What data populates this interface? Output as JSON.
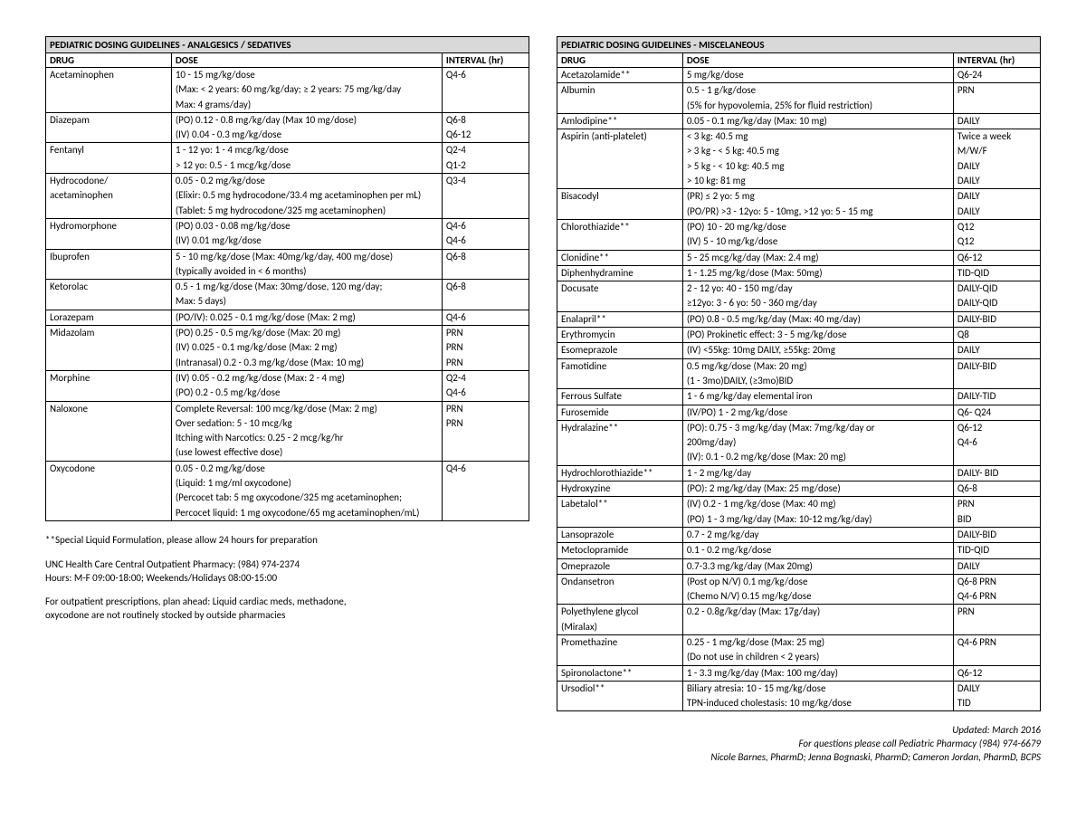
{
  "tables": {
    "left": {
      "title": "PEDIATRIC DOSING GUIDELINES - ANALGESICS / SEDATIVES",
      "headers": {
        "drug": "DRUG",
        "dose": "DOSE",
        "interval": "INTERVAL (hr)"
      },
      "rows": [
        {
          "sep": true,
          "drug": "Acetaminophen",
          "dose": "10 - 15 mg/kg/dose",
          "interval": "Q4-6"
        },
        {
          "drug": "",
          "dose": "(Max: < 2 years: 60 mg/kg/day; ≥ 2 years: 75 mg/kg/day",
          "interval": ""
        },
        {
          "drug": "",
          "dose": "Max: 4 grams/day)",
          "interval": ""
        },
        {
          "sep": true,
          "drug": "Diazepam",
          "dose": "(PO) 0.12 - 0.8 mg/kg/day (Max 10 mg/dose)",
          "interval": "Q6-8"
        },
        {
          "drug": "",
          "dose": "(IV) 0.04 - 0.3 mg/kg/dose",
          "interval": "Q6-12"
        },
        {
          "sep": true,
          "drug": "Fentanyl",
          "dose": "1 - 12 yo: 1 - 4 mcg/kg/dose",
          "interval": "Q2-4"
        },
        {
          "drug": "",
          "dose": "> 12 yo: 0.5 - 1 mcg/kg/dose",
          "interval": "Q1-2"
        },
        {
          "sep": true,
          "drug": "Hydrocodone/",
          "dose": "0.05 - 0.2 mg/kg/dose",
          "interval": "Q3-4"
        },
        {
          "drug": "acetaminophen",
          "dose": "(Elixir: 0.5 mg hydrocodone/33.4 mg acetaminophen per mL)",
          "interval": ""
        },
        {
          "drug": "",
          "dose": "(Tablet: 5 mg hydrocodone/325 mg acetaminophen)",
          "interval": ""
        },
        {
          "sep": true,
          "drug": "Hydromorphone",
          "dose": "(PO) 0.03 - 0.08 mg/kg/dose",
          "interval": "Q4-6"
        },
        {
          "drug": "",
          "dose": "(IV) 0.01 mg/kg/dose",
          "interval": "Q4-6"
        },
        {
          "sep": true,
          "drug": "Ibuprofen",
          "dose": "5 - 10 mg/kg/dose (Max: 40mg/kg/day, 400 mg/dose)",
          "interval": "Q6-8"
        },
        {
          "drug": "",
          "dose": "(typically avoided in < 6 months)",
          "interval": ""
        },
        {
          "sep": true,
          "drug": "Ketorolac",
          "dose": "0.5 - 1 mg/kg/dose (Max: 30mg/dose, 120 mg/day;",
          "interval": "Q6-8"
        },
        {
          "drug": "",
          "dose": "Max: 5 days)",
          "interval": ""
        },
        {
          "sep": true,
          "drug": "Lorazepam",
          "dose": "(PO/IV): 0.025 - 0.1 mg/kg/dose (Max: 2 mg)",
          "interval": "Q4-6"
        },
        {
          "sep": true,
          "drug": "Midazolam",
          "dose": "(PO) 0.25 - 0.5 mg/kg/dose (Max: 20 mg)",
          "interval": "PRN"
        },
        {
          "drug": "",
          "dose": "(IV) 0.025 - 0.1 mg/kg/dose (Max: 2 mg)",
          "interval": "PRN"
        },
        {
          "drug": "",
          "dose": "(Intranasal) 0.2 - 0.3 mg/kg/dose (Max: 10 mg)",
          "interval": "PRN"
        },
        {
          "sep": true,
          "drug": "Morphine",
          "dose": "(IV) 0.05 - 0.2 mg/kg/dose (Max: 2 - 4 mg)",
          "interval": "Q2-4"
        },
        {
          "drug": "",
          "dose": "(PO) 0.2 - 0.5 mg/kg/dose",
          "interval": "Q4-6"
        },
        {
          "sep": true,
          "drug": "Naloxone",
          "dose": "Complete Reversal: 100 mcg/kg/dose (Max: 2 mg)",
          "interval": "PRN"
        },
        {
          "drug": "",
          "dose": "Over sedation: 5 - 10 mcg/kg",
          "interval": "PRN"
        },
        {
          "drug": "",
          "dose": "Itching with Narcotics: 0.25 - 2 mcg/kg/hr",
          "interval": ""
        },
        {
          "drug": "",
          "dose": "(use lowest effective dose)",
          "interval": ""
        },
        {
          "sep": true,
          "drug": "Oxycodone",
          "dose": "0.05 - 0.2 mg/kg/dose",
          "interval": "Q4-6"
        },
        {
          "drug": "",
          "dose": "(Liquid: 1 mg/ml oxycodone)",
          "interval": ""
        },
        {
          "drug": "",
          "dose": "(Percocet tab: 5 mg oxycodone/325 mg acetaminophen;",
          "interval": ""
        },
        {
          "last": true,
          "drug": "",
          "dose": "Percocet liquid: 1 mg oxycodone/65 mg acetaminophen/mL)",
          "interval": ""
        }
      ]
    },
    "right": {
      "title": "PEDIATRIC DOSING GUIDELINES - MISCELANEOUS",
      "headers": {
        "drug": "DRUG",
        "dose": "DOSE",
        "interval": "INTERVAL (hr)"
      },
      "rows": [
        {
          "sep": true,
          "drug": "Acetazolamide**",
          "dose": "5 mg/kg/dose",
          "interval": "Q6-24"
        },
        {
          "sep": true,
          "drug": "Albumin",
          "dose": "0.5 - 1 g/kg/dose",
          "interval": "PRN"
        },
        {
          "drug": "",
          "dose": "(5% for hypovolemia, 25% for fluid restriction)",
          "interval": ""
        },
        {
          "sep": true,
          "drug": "Amlodipine**",
          "dose": "0.05 - 0.1 mg/kg/day (Max: 10 mg)",
          "interval": "DAILY"
        },
        {
          "sep": true,
          "drug": "Aspirin (anti-platelet)",
          "dose": "< 3 kg: 40.5 mg",
          "interval": "Twice a week"
        },
        {
          "drug": "",
          "dose": "> 3 kg - < 5 kg: 40.5 mg",
          "interval": "M/W/F"
        },
        {
          "drug": "",
          "dose": "> 5 kg - < 10 kg: 40.5 mg",
          "interval": "DAILY"
        },
        {
          "drug": "",
          "dose": "> 10 kg: 81 mg",
          "interval": "DAILY"
        },
        {
          "sep": true,
          "drug": "Bisacodyl",
          "dose": "(PR) ≤ 2 yo: 5 mg",
          "interval": "DAILY"
        },
        {
          "drug": "",
          "dose": "(PO/PR) >3 - 12yo: 5 - 10mg, >12 yo: 5 - 15 mg",
          "interval": "DAILY"
        },
        {
          "sep": true,
          "drug": "Chlorothiazide**",
          "dose": "(PO) 10 - 20 mg/kg/dose",
          "interval": "Q12"
        },
        {
          "drug": "",
          "dose": "(IV) 5 - 10 mg/kg/dose",
          "interval": "Q12"
        },
        {
          "sep": true,
          "drug": "Clonidine**",
          "dose": "5 - 25 mcg/kg/day (Max: 2.4 mg)",
          "interval": "Q6-12"
        },
        {
          "sep": true,
          "drug": "Diphenhydramine",
          "dose": "1 - 1.25 mg/kg/dose (Max: 50mg)",
          "interval": "TID-QID"
        },
        {
          "sep": true,
          "drug": "Docusate",
          "dose": "2 - 12 yo:  40 - 150 mg/day",
          "interval": "DAILY-QID"
        },
        {
          "drug": "",
          "dose": "≥12yo: 3 - 6 yo:  50 - 360 mg/day",
          "interval": "DAILY-QID"
        },
        {
          "sep": true,
          "drug": "Enalapril**",
          "dose": "(PO) 0.8 - 0.5 mg/kg/day (Max: 40 mg/day)",
          "interval": "DAILY-BID"
        },
        {
          "sep": true,
          "drug": "Erythromycin",
          "dose": "(PO) Prokinetic effect: 3 - 5 mg/kg/dose",
          "interval": "Q8"
        },
        {
          "sep": true,
          "drug": "Esomeprazole",
          "dose": "(IV) <55kg: 10mg DAILY, ≥55kg: 20mg",
          "interval": "DAILY"
        },
        {
          "sep": true,
          "drug": "Famotidine",
          "dose": "0.5 mg/kg/dose (Max: 20 mg)",
          "interval": "DAILY-BID"
        },
        {
          "drug": "",
          "dose": "(1 - 3mo)DAILY, (≥3mo)BID",
          "interval": ""
        },
        {
          "sep": true,
          "drug": "Ferrous Sulfate",
          "dose": "1 - 6 mg/kg/day elemental iron",
          "interval": "DAILY-TID"
        },
        {
          "sep": true,
          "drug": "Furosemide",
          "dose": "(IV/PO) 1 - 2 mg/kg/dose",
          "interval": "Q6- Q24"
        },
        {
          "sep": true,
          "drug": "Hydralazine**",
          "dose": "(PO): 0.75 - 3 mg/kg/day (Max: 7mg/kg/day or",
          "interval": "Q6-12"
        },
        {
          "drug": "",
          "dose": "200mg/day)",
          "interval": "Q4-6"
        },
        {
          "drug": "",
          "dose": "(IV): 0.1 - 0.2 mg/kg/dose (Max: 20 mg)",
          "interval": ""
        },
        {
          "sep": true,
          "drug": "Hydrochlorothiazide**",
          "dose": "1 - 2 mg/kg/day",
          "interval": "DAILY- BID"
        },
        {
          "sep": true,
          "drug": "Hydroxyzine",
          "dose": "(PO): 2 mg/kg/day (Max: 25 mg/dose)",
          "interval": "Q6-8"
        },
        {
          "sep": true,
          "drug": "Labetalol**",
          "dose": "(IV) 0.2 - 1 mg/kg/dose (Max: 40 mg)",
          "interval": "PRN"
        },
        {
          "drug": "",
          "dose": "(PO) 1 - 3 mg/kg/day (Max: 10-12 mg/kg/day)",
          "interval": "BID"
        },
        {
          "sep": true,
          "drug": "Lansoprazole",
          "dose": "0.7 - 2 mg/kg/day",
          "interval": "DAILY-BID"
        },
        {
          "sep": true,
          "drug": "Metoclopramide",
          "dose": "0.1 - 0.2 mg/kg/dose",
          "interval": "TID-QID"
        },
        {
          "sep": true,
          "drug": "Omeprazole",
          "dose": "0.7-3.3 mg/kg/day (Max 20mg)",
          "interval": "DAILY"
        },
        {
          "sep": true,
          "drug": "Ondansetron",
          "dose": "(Post op N/V) 0.1 mg/kg/dose",
          "interval": "Q6-8 PRN"
        },
        {
          "drug": "",
          "dose": "(Chemo N/V) 0.15 mg/kg/dose",
          "interval": "Q4-6 PRN"
        },
        {
          "sep": true,
          "drug": "Polyethylene glycol",
          "dose": "0.2 - 0.8g/kg/day (Max: 17g/day)",
          "interval": "PRN"
        },
        {
          "drug": "(Miralax)",
          "dose": "",
          "interval": ""
        },
        {
          "sep": true,
          "drug": "Promethazine",
          "dose": "0.25 - 1 mg/kg/dose (Max: 25 mg)",
          "interval": "Q4-6 PRN"
        },
        {
          "drug": "",
          "dose": "(Do not use in children < 2 years)",
          "interval": ""
        },
        {
          "sep": true,
          "drug": "Spironolactone**",
          "dose": "1 - 3.3 mg/kg/day (Max: 100 mg/day)",
          "interval": "Q6-12"
        },
        {
          "sep": true,
          "drug": "Ursodiol**",
          "dose": "Biliary atresia: 10 - 15 mg/kg/dose",
          "interval": "DAILY"
        },
        {
          "last": true,
          "drug": "",
          "dose": "TPN-induced cholestasis: 10 mg/kg/dose",
          "interval": "TID"
        }
      ]
    }
  },
  "notes": {
    "n1": "**Special Liquid Formulation, please allow 24 hours for preparation",
    "n2a": "UNC Health Care Central Outpatient Pharmacy: (984) 974-2374",
    "n2b": "Hours: M-F 09:00-18:00; Weekends/Holidays 08:00-15:00",
    "n3a": "For outpatient prescriptions, plan ahead: Liquid cardiac meds, methadone,",
    "n3b": "oxycodone are not routinely stocked by outside pharmacies"
  },
  "footer": {
    "f1": "Updated: March 2016",
    "f2": "For questions please call Pediatric Pharmacy (984) 974-6679",
    "f3": "Nicole Barnes, PharmD; Jenna Bognaski, PharmD; Cameron Jordan, PharmD, BCPS"
  }
}
